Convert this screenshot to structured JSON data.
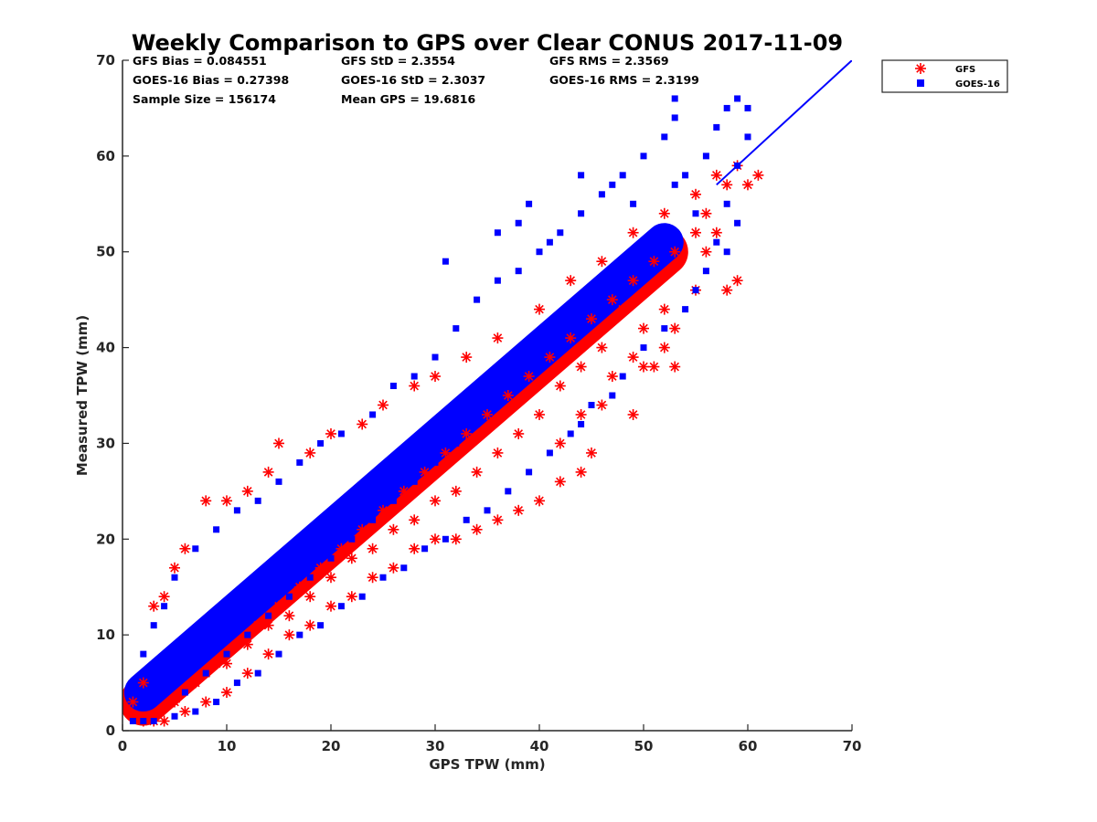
{
  "chart_data": {
    "type": "scatter",
    "title": "Weekly Comparison to GPS over Clear CONUS 2017-11-09",
    "xlabel": "GPS TPW (mm)",
    "ylabel": "Measured TPW (mm)",
    "xlim": [
      0,
      70
    ],
    "ylim": [
      0,
      70
    ],
    "xticks": [
      "0",
      "10",
      "20",
      "30",
      "40",
      "50",
      "60",
      "70"
    ],
    "yticks": [
      "0",
      "10",
      "20",
      "30",
      "40",
      "50",
      "60",
      "70"
    ],
    "grid": false,
    "legend_position": "outside top-right",
    "stats": [
      [
        "GFS Bias = 0.084551",
        "GFS StD = 2.3554",
        "GFS RMS = 2.3569"
      ],
      [
        "GOES-16 Bias = 0.27398",
        "GOES-16 StD = 2.3037",
        "GOES-16 RMS = 2.3199"
      ],
      [
        "Sample Size = 156174",
        "Mean GPS = 19.6816"
      ]
    ],
    "reference_line": {
      "x": [
        57,
        70
      ],
      "y": [
        57,
        70
      ],
      "color": "#0000ff"
    },
    "series": [
      {
        "name": "GFS",
        "marker": "asterisk",
        "color": "#ff0000",
        "points": [
          [
            1,
            3
          ],
          [
            2,
            5
          ],
          [
            3,
            13
          ],
          [
            4,
            14
          ],
          [
            5,
            17
          ],
          [
            6,
            19
          ],
          [
            8,
            24
          ],
          [
            10,
            24
          ],
          [
            12,
            25
          ],
          [
            14,
            27
          ],
          [
            15,
            30
          ],
          [
            18,
            29
          ],
          [
            20,
            31
          ],
          [
            23,
            32
          ],
          [
            25,
            34
          ],
          [
            28,
            36
          ],
          [
            30,
            37
          ],
          [
            33,
            39
          ],
          [
            36,
            41
          ],
          [
            40,
            44
          ],
          [
            43,
            47
          ],
          [
            46,
            49
          ],
          [
            49,
            52
          ],
          [
            52,
            54
          ],
          [
            55,
            56
          ],
          [
            57,
            58
          ],
          [
            59,
            59
          ],
          [
            61,
            58
          ],
          [
            60,
            57
          ],
          [
            58,
            57
          ],
          [
            59,
            47
          ],
          [
            58,
            46
          ],
          [
            57,
            52
          ],
          [
            56,
            50
          ],
          [
            55,
            46
          ],
          [
            53,
            42
          ],
          [
            52,
            40
          ],
          [
            51,
            38
          ],
          [
            50,
            38
          ],
          [
            49,
            39
          ],
          [
            53,
            38
          ],
          [
            52,
            44
          ],
          [
            50,
            42
          ],
          [
            47,
            37
          ],
          [
            46,
            34
          ],
          [
            44,
            33
          ],
          [
            49,
            33
          ],
          [
            45,
            29
          ],
          [
            42,
            30
          ],
          [
            44,
            27
          ],
          [
            42,
            26
          ],
          [
            40,
            24
          ],
          [
            38,
            23
          ],
          [
            36,
            22
          ],
          [
            34,
            21
          ],
          [
            32,
            20
          ],
          [
            30,
            20
          ],
          [
            28,
            19
          ],
          [
            26,
            17
          ],
          [
            24,
            16
          ],
          [
            22,
            14
          ],
          [
            20,
            13
          ],
          [
            18,
            11
          ],
          [
            16,
            10
          ],
          [
            14,
            8
          ],
          [
            12,
            6
          ],
          [
            10,
            4
          ],
          [
            8,
            3
          ],
          [
            6,
            2
          ],
          [
            4,
            1
          ],
          [
            3,
            1
          ],
          [
            2,
            1
          ],
          [
            5,
            3
          ],
          [
            7,
            5
          ],
          [
            9,
            7
          ],
          [
            11,
            9
          ],
          [
            13,
            11
          ],
          [
            15,
            13
          ],
          [
            17,
            15
          ],
          [
            19,
            17
          ],
          [
            21,
            19
          ],
          [
            23,
            21
          ],
          [
            25,
            23
          ],
          [
            27,
            25
          ],
          [
            29,
            27
          ],
          [
            31,
            29
          ],
          [
            33,
            31
          ],
          [
            35,
            33
          ],
          [
            37,
            35
          ],
          [
            39,
            37
          ],
          [
            41,
            39
          ],
          [
            43,
            41
          ],
          [
            45,
            43
          ],
          [
            47,
            45
          ],
          [
            49,
            47
          ],
          [
            51,
            49
          ],
          [
            53,
            50
          ],
          [
            55,
            52
          ],
          [
            56,
            54
          ],
          [
            48,
            44
          ],
          [
            46,
            40
          ],
          [
            44,
            38
          ],
          [
            42,
            36
          ],
          [
            40,
            33
          ],
          [
            38,
            31
          ],
          [
            36,
            29
          ],
          [
            34,
            27
          ],
          [
            32,
            25
          ],
          [
            30,
            24
          ],
          [
            28,
            22
          ],
          [
            26,
            21
          ],
          [
            24,
            19
          ],
          [
            22,
            18
          ],
          [
            20,
            16
          ],
          [
            18,
            14
          ],
          [
            16,
            12
          ],
          [
            14,
            11
          ],
          [
            12,
            9
          ],
          [
            10,
            7
          ],
          [
            8,
            6
          ]
        ]
      },
      {
        "name": "GOES-16",
        "marker": "square",
        "color": "#0000ff",
        "points": [
          [
            1,
            4
          ],
          [
            2,
            8
          ],
          [
            3,
            11
          ],
          [
            4,
            13
          ],
          [
            5,
            16
          ],
          [
            7,
            19
          ],
          [
            9,
            21
          ],
          [
            11,
            23
          ],
          [
            13,
            24
          ],
          [
            15,
            26
          ],
          [
            17,
            28
          ],
          [
            19,
            30
          ],
          [
            21,
            31
          ],
          [
            24,
            33
          ],
          [
            26,
            36
          ],
          [
            28,
            37
          ],
          [
            30,
            39
          ],
          [
            32,
            42
          ],
          [
            34,
            45
          ],
          [
            36,
            47
          ],
          [
            38,
            48
          ],
          [
            40,
            50
          ],
          [
            42,
            52
          ],
          [
            44,
            54
          ],
          [
            46,
            56
          ],
          [
            48,
            58
          ],
          [
            50,
            60
          ],
          [
            52,
            62
          ],
          [
            53,
            64
          ],
          [
            53,
            66
          ],
          [
            56,
            60
          ],
          [
            57,
            63
          ],
          [
            58,
            65
          ],
          [
            59,
            66
          ],
          [
            60,
            65
          ],
          [
            60,
            62
          ],
          [
            59,
            59
          ],
          [
            58,
            55
          ],
          [
            59,
            53
          ],
          [
            58,
            50
          ],
          [
            56,
            48
          ],
          [
            55,
            46
          ],
          [
            54,
            44
          ],
          [
            52,
            42
          ],
          [
            50,
            40
          ],
          [
            48,
            37
          ],
          [
            47,
            35
          ],
          [
            45,
            34
          ],
          [
            44,
            32
          ],
          [
            43,
            31
          ],
          [
            41,
            29
          ],
          [
            39,
            27
          ],
          [
            37,
            25
          ],
          [
            35,
            23
          ],
          [
            33,
            22
          ],
          [
            31,
            20
          ],
          [
            29,
            19
          ],
          [
            27,
            17
          ],
          [
            25,
            16
          ],
          [
            23,
            14
          ],
          [
            21,
            13
          ],
          [
            19,
            11
          ],
          [
            17,
            10
          ],
          [
            15,
            8
          ],
          [
            13,
            6
          ],
          [
            11,
            5
          ],
          [
            9,
            3
          ],
          [
            7,
            2
          ],
          [
            5,
            1.5
          ],
          [
            3,
            1
          ],
          [
            2,
            1
          ],
          [
            1,
            1
          ],
          [
            6,
            4
          ],
          [
            8,
            6
          ],
          [
            10,
            8
          ],
          [
            12,
            10
          ],
          [
            14,
            12
          ],
          [
            16,
            14
          ],
          [
            18,
            16
          ],
          [
            20,
            18
          ],
          [
            22,
            20
          ],
          [
            24,
            22
          ],
          [
            26,
            24
          ],
          [
            28,
            26
          ],
          [
            30,
            28
          ],
          [
            32,
            30
          ],
          [
            34,
            32
          ],
          [
            36,
            34
          ],
          [
            38,
            36
          ],
          [
            40,
            38
          ],
          [
            42,
            40
          ],
          [
            44,
            42
          ],
          [
            46,
            44
          ],
          [
            48,
            46
          ],
          [
            50,
            48
          ],
          [
            52,
            50
          ],
          [
            51,
            52
          ],
          [
            49,
            50
          ],
          [
            47,
            48
          ],
          [
            45,
            46
          ],
          [
            43,
            44
          ],
          [
            41,
            42
          ],
          [
            39,
            40
          ],
          [
            37,
            38
          ],
          [
            35,
            36
          ],
          [
            33,
            34
          ],
          [
            31,
            32
          ],
          [
            29,
            30
          ],
          [
            27,
            28
          ],
          [
            25,
            26
          ],
          [
            23,
            24
          ],
          [
            21,
            22
          ],
          [
            19,
            20
          ],
          [
            17,
            18
          ],
          [
            15,
            16
          ],
          [
            13,
            14
          ],
          [
            11,
            12
          ],
          [
            9,
            10
          ],
          [
            7,
            8
          ],
          [
            4,
            6
          ],
          [
            38,
            53
          ],
          [
            36,
            52
          ],
          [
            41,
            51
          ],
          [
            31,
            49
          ],
          [
            39,
            55
          ],
          [
            44,
            58
          ],
          [
            49,
            55
          ],
          [
            47,
            57
          ],
          [
            54,
            58
          ],
          [
            57,
            51
          ],
          [
            55,
            54
          ],
          [
            53,
            57
          ]
        ]
      }
    ]
  }
}
